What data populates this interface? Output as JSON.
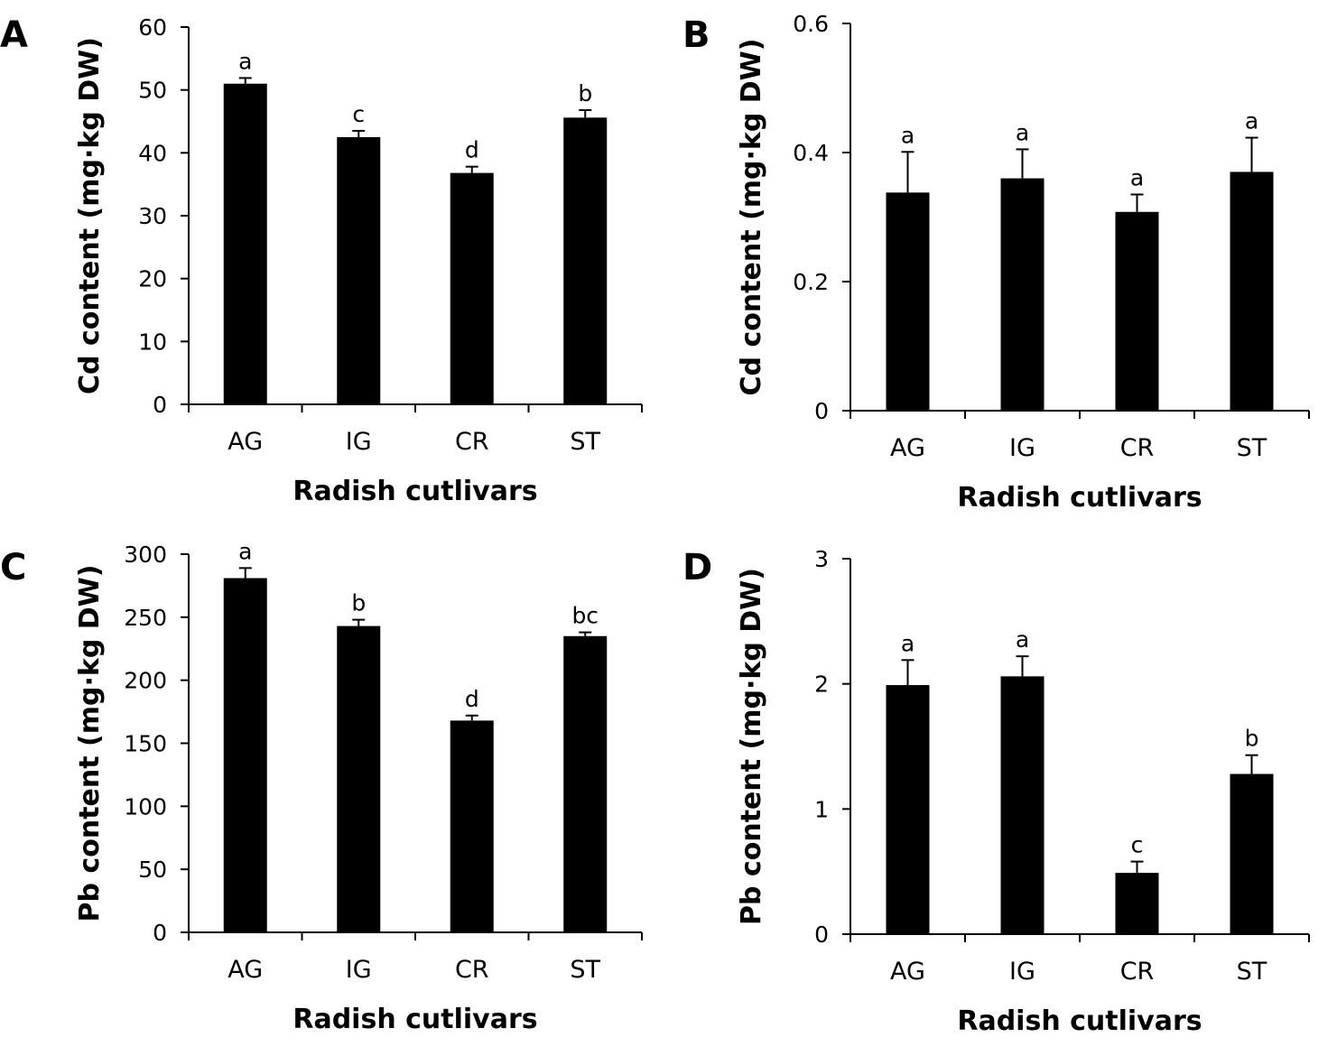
{
  "chart_data": [
    {
      "panel": "A",
      "type": "bar",
      "categories": [
        "AG",
        "IG",
        "CR",
        "ST"
      ],
      "values": [
        51,
        42.5,
        36.8,
        45.6
      ],
      "errors": [
        0.9,
        1.0,
        1.0,
        1.2
      ],
      "significance": [
        "a",
        "c",
        "d",
        "b"
      ],
      "xlabel": "Radish cutlivars",
      "ylabel": "Cd content (mg·kg DW)",
      "ylim": [
        0,
        60
      ],
      "yticks": [
        0,
        10,
        20,
        30,
        40,
        50,
        60
      ],
      "ytick_labels": [
        "0",
        "10",
        "20",
        "30",
        "40",
        "50",
        "60"
      ],
      "color": "#000000",
      "grid": false
    },
    {
      "panel": "B",
      "type": "bar",
      "categories": [
        "AG",
        "IG",
        "CR",
        "ST"
      ],
      "values": [
        0.338,
        0.36,
        0.308,
        0.37
      ],
      "errors": [
        0.063,
        0.045,
        0.027,
        0.053
      ],
      "significance": [
        "a",
        "a",
        "a",
        "a"
      ],
      "xlabel": "Radish cutlivars",
      "ylabel": "Cd content (mg·kg DW)",
      "ylim": [
        0,
        0.6
      ],
      "yticks": [
        0,
        0.2,
        0.4,
        0.6
      ],
      "ytick_labels": [
        "0",
        "0.2",
        "0.4",
        "0.6"
      ],
      "color": "#000000",
      "grid": false
    },
    {
      "panel": "C",
      "type": "bar",
      "categories": [
        "AG",
        "IG",
        "CR",
        "ST"
      ],
      "values": [
        281,
        243,
        168,
        235
      ],
      "errors": [
        8,
        5,
        4,
        3
      ],
      "significance": [
        "a",
        "b",
        "d",
        "bc"
      ],
      "xlabel": "Radish cutlivars",
      "ylabel": "Pb content (mg·kg DW)",
      "ylim": [
        0,
        300
      ],
      "yticks": [
        0,
        50,
        100,
        150,
        200,
        250,
        300
      ],
      "ytick_labels": [
        "0",
        "50",
        "100",
        "150",
        "200",
        "250",
        "300"
      ],
      "color": "#000000",
      "grid": false
    },
    {
      "panel": "D",
      "type": "bar",
      "categories": [
        "AG",
        "IG",
        "CR",
        "ST"
      ],
      "values": [
        1.99,
        2.06,
        0.49,
        1.28
      ],
      "errors": [
        0.2,
        0.16,
        0.09,
        0.15
      ],
      "significance": [
        "a",
        "a",
        "c",
        "b"
      ],
      "xlabel": "Radish cutlivars",
      "ylabel": "Pb content (mg·kg DW)",
      "ylim": [
        0,
        3
      ],
      "yticks": [
        0,
        1,
        2,
        3
      ],
      "ytick_labels": [
        "0",
        "1",
        "2",
        "3"
      ],
      "color": "#000000",
      "grid": false
    }
  ]
}
